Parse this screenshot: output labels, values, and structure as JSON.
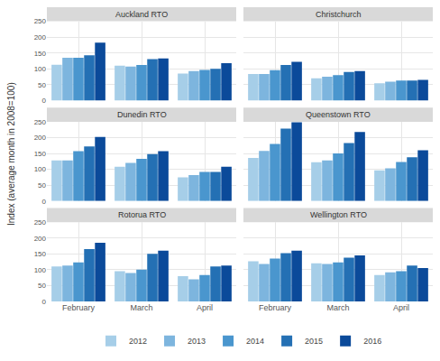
{
  "y_label": "Index (average month in 2008=100)",
  "chart_data": [
    {
      "type": "bar",
      "title": "Auckland RTO",
      "categories": [
        "February",
        "March",
        "April"
      ],
      "ylim": [
        0,
        250
      ],
      "yticks": [
        0,
        50,
        100,
        150,
        200,
        250
      ],
      "grid": true,
      "legend": "bottom",
      "series": [
        {
          "name": "2012",
          "color": "#a6cee8",
          "values": [
            113,
            110,
            85
          ]
        },
        {
          "name": "2013",
          "color": "#7db5de",
          "values": [
            135,
            107,
            93
          ]
        },
        {
          "name": "2014",
          "color": "#4a96ce",
          "values": [
            135,
            112,
            97
          ]
        },
        {
          "name": "2015",
          "color": "#2470b4",
          "values": [
            143,
            131,
            100
          ]
        },
        {
          "name": "2016",
          "color": "#0b4a9a",
          "values": [
            183,
            133,
            118
          ]
        }
      ]
    },
    {
      "type": "bar",
      "title": "Christchurch",
      "categories": [
        "February",
        "March",
        "April"
      ],
      "ylim": [
        0,
        250
      ],
      "yticks": [
        0,
        50,
        100,
        150,
        200,
        250
      ],
      "grid": true,
      "legend": "bottom",
      "series": [
        {
          "name": "2012",
          "color": "#a6cee8",
          "values": [
            84,
            70,
            55
          ]
        },
        {
          "name": "2013",
          "color": "#7db5de",
          "values": [
            84,
            75,
            60
          ]
        },
        {
          "name": "2014",
          "color": "#4a96ce",
          "values": [
            96,
            80,
            63
          ]
        },
        {
          "name": "2015",
          "color": "#2470b4",
          "values": [
            112,
            90,
            63
          ]
        },
        {
          "name": "2016",
          "color": "#0b4a9a",
          "values": [
            122,
            93,
            65
          ]
        }
      ]
    },
    {
      "type": "bar",
      "title": "Dunedin RTO",
      "categories": [
        "February",
        "March",
        "April"
      ],
      "ylim": [
        0,
        250
      ],
      "yticks": [
        0,
        50,
        100,
        150,
        200,
        250
      ],
      "grid": true,
      "legend": "bottom",
      "series": [
        {
          "name": "2012",
          "color": "#a6cee8",
          "values": [
            128,
            108,
            75
          ]
        },
        {
          "name": "2013",
          "color": "#7db5de",
          "values": [
            128,
            120,
            82
          ]
        },
        {
          "name": "2014",
          "color": "#4a96ce",
          "values": [
            157,
            133,
            92
          ]
        },
        {
          "name": "2015",
          "color": "#2470b4",
          "values": [
            172,
            148,
            92
          ]
        },
        {
          "name": "2016",
          "color": "#0b4a9a",
          "values": [
            202,
            157,
            108
          ]
        }
      ]
    },
    {
      "type": "bar",
      "title": "Queenstown RTO",
      "categories": [
        "February",
        "March",
        "April"
      ],
      "ylim": [
        0,
        250
      ],
      "yticks": [
        0,
        50,
        100,
        150,
        200,
        250
      ],
      "grid": true,
      "legend": "bottom",
      "series": [
        {
          "name": "2012",
          "color": "#a6cee8",
          "values": [
            136,
            122,
            97
          ]
        },
        {
          "name": "2013",
          "color": "#7db5de",
          "values": [
            158,
            128,
            103
          ]
        },
        {
          "name": "2014",
          "color": "#4a96ce",
          "values": [
            180,
            150,
            123
          ]
        },
        {
          "name": "2015",
          "color": "#2470b4",
          "values": [
            228,
            183,
            138
          ]
        },
        {
          "name": "2016",
          "color": "#0b4a9a",
          "values": [
            248,
            218,
            160
          ]
        }
      ]
    },
    {
      "type": "bar",
      "title": "Rotorua RTO",
      "categories": [
        "February",
        "March",
        "April"
      ],
      "ylim": [
        0,
        250
      ],
      "yticks": [
        0,
        50,
        100,
        150,
        200,
        250
      ],
      "grid": true,
      "legend": "bottom",
      "series": [
        {
          "name": "2012",
          "color": "#a6cee8",
          "values": [
            110,
            95,
            80
          ]
        },
        {
          "name": "2013",
          "color": "#7db5de",
          "values": [
            113,
            90,
            70
          ]
        },
        {
          "name": "2014",
          "color": "#4a96ce",
          "values": [
            123,
            100,
            83
          ]
        },
        {
          "name": "2015",
          "color": "#2470b4",
          "values": [
            165,
            150,
            110
          ]
        },
        {
          "name": "2016",
          "color": "#0b4a9a",
          "values": [
            185,
            160,
            113
          ]
        }
      ]
    },
    {
      "type": "bar",
      "title": "Wellington RTO",
      "categories": [
        "February",
        "March",
        "April"
      ],
      "ylim": [
        0,
        250
      ],
      "yticks": [
        0,
        50,
        100,
        150,
        200,
        250
      ],
      "grid": true,
      "legend": "bottom",
      "series": [
        {
          "name": "2012",
          "color": "#a6cee8",
          "values": [
            127,
            120,
            83
          ]
        },
        {
          "name": "2013",
          "color": "#7db5de",
          "values": [
            118,
            118,
            92
          ]
        },
        {
          "name": "2014",
          "color": "#4a96ce",
          "values": [
            135,
            123,
            95
          ]
        },
        {
          "name": "2015",
          "color": "#2470b4",
          "values": [
            152,
            138,
            113
          ]
        },
        {
          "name": "2016",
          "color": "#0b4a9a",
          "values": [
            160,
            145,
            105
          ]
        }
      ]
    }
  ]
}
